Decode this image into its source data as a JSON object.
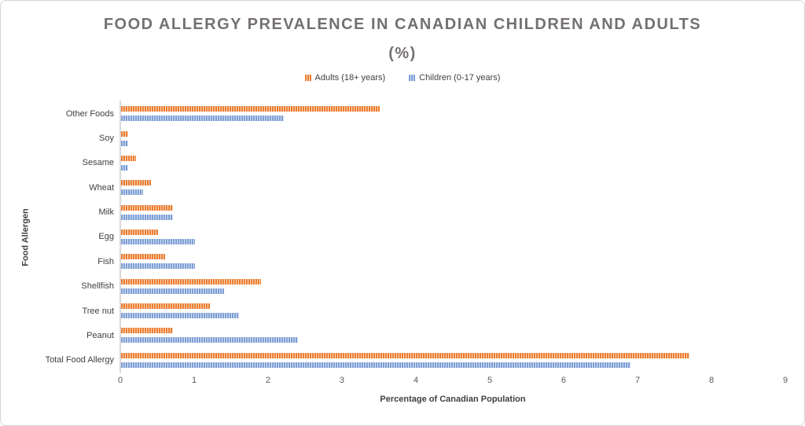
{
  "chart_data": {
    "type": "bar",
    "orientation": "horizontal",
    "title": "FOOD ALLERGY PREVALENCE IN CANADIAN CHILDREN AND ADULTS (%)",
    "categories_top_to_bottom": [
      "Other Foods",
      "Soy",
      "Sesame",
      "Wheat",
      "Milk",
      "Egg",
      "Fish",
      "Shellfish",
      "Tree nut",
      "Peanut",
      "Total Food Allergy"
    ],
    "series": [
      {
        "name": "Adults (18+ years)",
        "color": "#ED7D31",
        "color_light": "#F7D9C0",
        "values": [
          3.5,
          0.1,
          0.2,
          0.4,
          0.7,
          0.5,
          0.6,
          1.9,
          1.2,
          0.7,
          7.7
        ]
      },
      {
        "name": "Children (0-17 years)",
        "color": "#7D9FD6",
        "color_light": "#D8E2F3",
        "values": [
          2.2,
          0.1,
          0.1,
          0.3,
          0.7,
          1.0,
          1.0,
          1.4,
          1.6,
          2.4,
          6.9
        ]
      }
    ],
    "xlabel": "Percentage of Canadian Population",
    "ylabel": "Food Allergen",
    "xlim": [
      0,
      9
    ],
    "xticks": [
      0,
      1,
      2,
      3,
      4,
      5,
      6,
      7,
      8,
      9
    ],
    "grid": false,
    "legend_position": "top-center",
    "bar_fill_pattern": "vertical-dashes",
    "axis_line_color": "#d9d9d9",
    "title_color": "#757070"
  }
}
